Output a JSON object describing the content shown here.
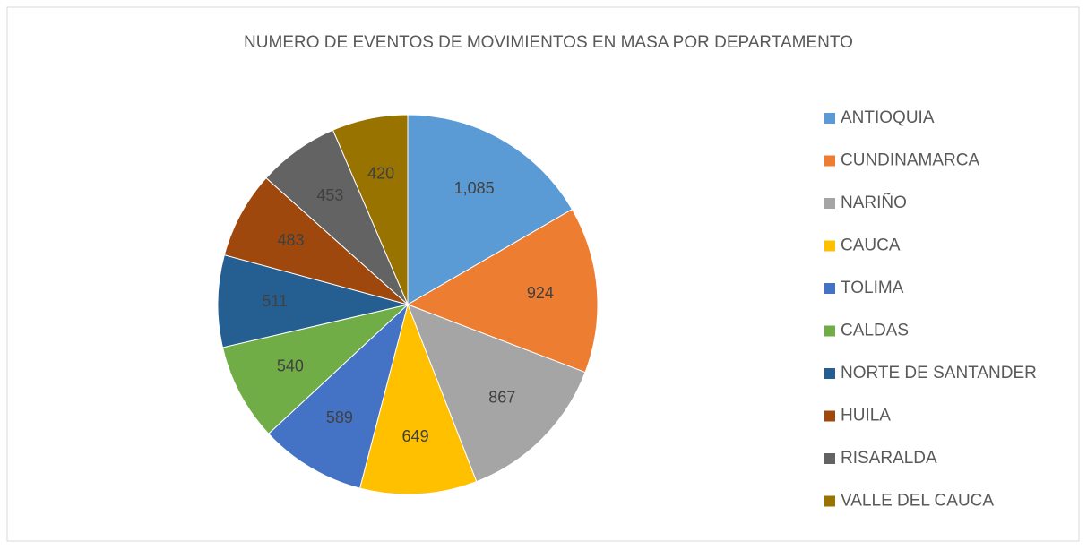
{
  "chart_data": {
    "type": "pie",
    "title": "NUMERO DE EVENTOS DE MOVIMIENTOS EN MASA POR DEPARTAMENTO",
    "categories": [
      "ANTIOQUIA",
      "CUNDINAMARCA",
      "NARIÑO",
      "CAUCA",
      "TOLIMA",
      "CALDAS",
      "NORTE DE SANTANDER",
      "HUILA",
      "RISARALDA",
      "VALLE DEL CAUCA"
    ],
    "values": [
      1085,
      924,
      867,
      649,
      589,
      540,
      511,
      483,
      453,
      420
    ],
    "value_labels": [
      "1,085",
      "924",
      "867",
      "649",
      "589",
      "540",
      "511",
      "483",
      "453",
      "420"
    ],
    "colors": [
      "#5b9bd5",
      "#ed7d31",
      "#a5a5a5",
      "#ffc000",
      "#4472c4",
      "#70ad47",
      "#255e91",
      "#9e480e",
      "#636363",
      "#997300"
    ],
    "legend": "right"
  }
}
